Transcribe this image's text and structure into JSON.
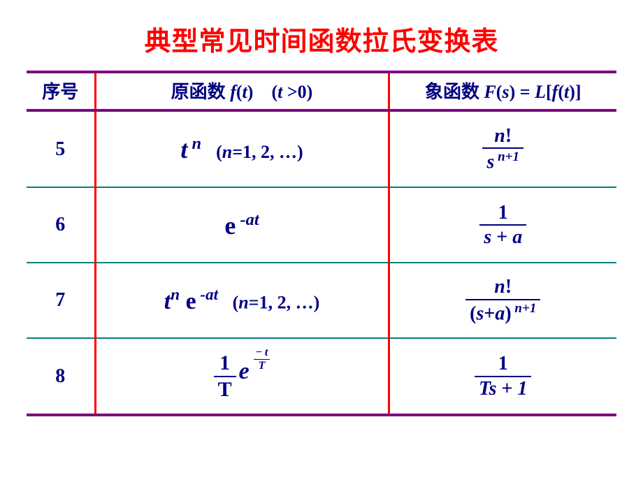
{
  "colors": {
    "title": "#ff0000",
    "header_text": "#000080",
    "cell_text": "#000080",
    "rule_purple": "#800080",
    "rule_red": "#ff0000",
    "rule_teal": "#008080"
  },
  "title": "典型常见时间函数拉氏变换表",
  "headers": {
    "col1": "序号",
    "col2_a": "原函数",
    "col2_f": "f",
    "col2_t": "t",
    "col2_cond_open": "(",
    "col2_cond_t": "t",
    "col2_cond_rest": " >0)",
    "col3_a": "象函数",
    "col3_F": "F",
    "col3_s": "s",
    "col3_eq": ") = ",
    "col3_L": "L",
    "col3_b1": "[",
    "col3_f": "f",
    "col3_t": "t",
    "col3_b2": ")]"
  },
  "rows": {
    "r5": {
      "num": "5",
      "fn_base": "t",
      "fn_exp": " n",
      "fn_cond_open": "(",
      "fn_cond_n": "n",
      "fn_cond_rest": "=1, 2, …)",
      "Fs_num_n": "n",
      "Fs_num_bang": "!",
      "Fs_den_s": "s",
      "Fs_den_exp": " n+1"
    },
    "r6": {
      "num": "6",
      "fn_base": "e",
      "fn_exp": " -at",
      "Fs_num": "1",
      "Fs_den_s": "s",
      "Fs_den_plus": " + ",
      "Fs_den_a": "a"
    },
    "r7": {
      "num": "7",
      "fn_t": "t",
      "fn_texp": "n",
      "fn_sp": " ",
      "fn_e": "e",
      "fn_eexp": " -at",
      "fn_cond_open": "(",
      "fn_cond_n": "n",
      "fn_cond_rest": "=1, 2, …)",
      "Fs_num_n": "n",
      "Fs_num_bang": "!",
      "Fs_den_open": "(",
      "Fs_den_s": "s",
      "Fs_den_plus": "+",
      "Fs_den_a": "a",
      "Fs_den_close": ")",
      "Fs_den_exp": " n+1"
    },
    "r8": {
      "num": "8",
      "fn_coef_num": "1",
      "fn_coef_den": "T",
      "fn_e": "e",
      "fn_exp_minus": "−",
      "fn_exp_num": "t",
      "fn_exp_den": "T",
      "Fs_num": "1",
      "Fs_den_T": "T",
      "Fs_den_s": "s",
      "Fs_den_plus": " + ",
      "Fs_den_1": "1"
    }
  }
}
